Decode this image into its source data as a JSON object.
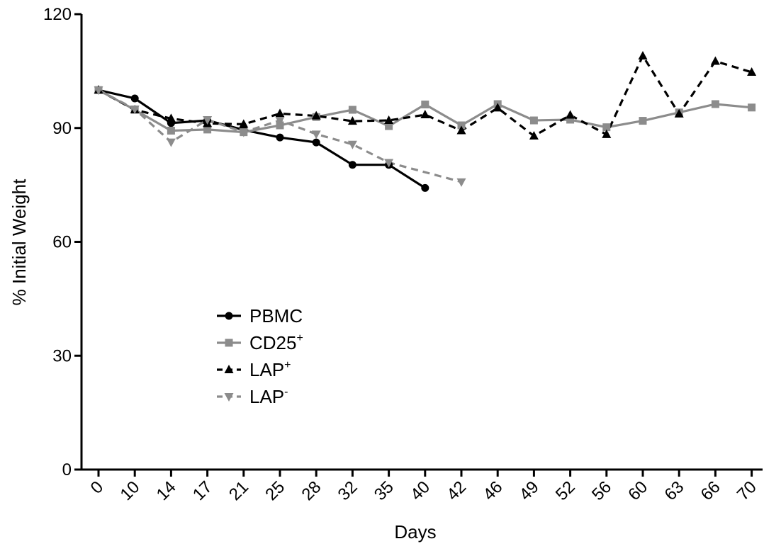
{
  "chart_data": {
    "type": "line",
    "title": "",
    "xlabel": "Days",
    "ylabel": "% Initial Weight",
    "categories": [
      "0",
      "10",
      "14",
      "17",
      "21",
      "25",
      "28",
      "32",
      "35",
      "40",
      "42",
      "46",
      "49",
      "52",
      "56",
      "60",
      "63",
      "66",
      "70"
    ],
    "yticks": [
      "0",
      "30",
      "60",
      "90",
      "120"
    ],
    "ylim": [
      0,
      120
    ],
    "legend_placement": "center-left",
    "grid": false,
    "series": [
      {
        "name": "PBMC",
        "label_base": "PBMC",
        "label_sup": "",
        "color": "#000000",
        "dashed": false,
        "marker": "circle",
        "values": [
          100,
          97.8,
          91.3,
          92.0,
          89.5,
          87.5,
          86.2,
          80.3,
          80.3,
          74.2,
          null,
          null,
          null,
          null,
          null,
          null,
          null,
          null,
          null
        ]
      },
      {
        "name": "CD25+",
        "label_base": "CD25",
        "label_sup": "+",
        "color": "#8c8c8c",
        "dashed": false,
        "marker": "square",
        "values": [
          100,
          94.8,
          89.3,
          89.6,
          88.9,
          90.7,
          92.9,
          94.8,
          90.5,
          96.2,
          90.7,
          96.3,
          92.0,
          92.2,
          90.2,
          91.9,
          94.1,
          96.3,
          95.4
        ]
      },
      {
        "name": "LAP+",
        "label_base": "LAP",
        "label_sup": "+",
        "color": "#000000",
        "dashed": true,
        "marker": "triangle-up",
        "values": [
          100,
          94.8,
          92.5,
          91.2,
          91.0,
          93.8,
          93.2,
          91.8,
          92.0,
          93.5,
          89.3,
          95.3,
          87.9,
          93.4,
          88.3,
          109.0,
          93.7,
          107.6,
          104.7
        ]
      },
      {
        "name": "LAP-",
        "label_base": "LAP",
        "label_sup": "-",
        "color": "#8c8c8c",
        "dashed": true,
        "marker": "triangle-down",
        "values": [
          100,
          95.0,
          86.3,
          92.2,
          88.9,
          92.0,
          88.4,
          85.7,
          80.9,
          null,
          75.8,
          null,
          null,
          null,
          null,
          null,
          null,
          null,
          null
        ]
      }
    ]
  }
}
